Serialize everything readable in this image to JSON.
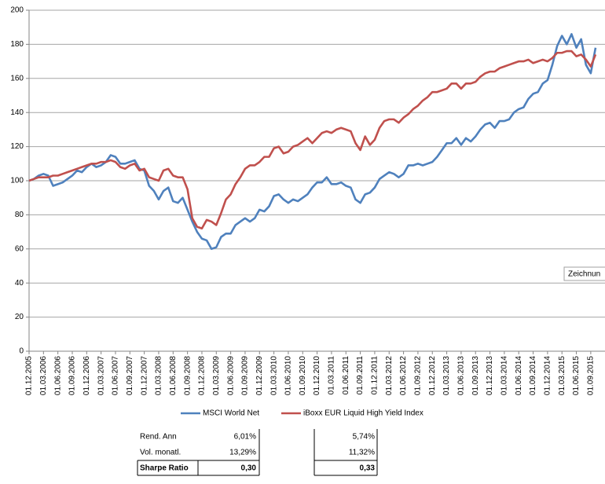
{
  "chart_data": {
    "type": "line",
    "categories": [
      "01.12.2005",
      null,
      null,
      "01.03.2006",
      null,
      null,
      "01.06.2006",
      null,
      null,
      "01.09.2006",
      null,
      null,
      "01.12.2006",
      null,
      null,
      "01.03.2007",
      null,
      null,
      "01.06.2007",
      null,
      null,
      "01.09.2007",
      null,
      null,
      "01.12.2007",
      null,
      null,
      "01.03.2008",
      null,
      null,
      "01.06.2008",
      null,
      null,
      "01.09.2008",
      null,
      null,
      "01.12.2008",
      null,
      null,
      "01.03.2009",
      null,
      null,
      "01.06.2009",
      null,
      null,
      "01.09.2009",
      null,
      null,
      "01.12.2009",
      null,
      null,
      "01.03.2010",
      null,
      null,
      "01.06.2010",
      null,
      null,
      "01.09.2010",
      null,
      null,
      "01.12.2010",
      null,
      null,
      "01.03.2011",
      null,
      null,
      "01.06.2011",
      null,
      null,
      "01.09.2011",
      null,
      null,
      "01.12.2011",
      null,
      null,
      "01.03.2012",
      null,
      null,
      "01.06.2012",
      null,
      null,
      "01.09.2012",
      null,
      null,
      "01.12.2012",
      null,
      null,
      "01.03.2013",
      null,
      null,
      "01.06.2013",
      null,
      null,
      "01.09.2013",
      null,
      null,
      "01.12.2013",
      null,
      null,
      "01.03.2014",
      null,
      null,
      "01.06.2014",
      null,
      null,
      "01.09.2014",
      null,
      null,
      "01.12.2014",
      null,
      null,
      "01.03.2015",
      null,
      null,
      "01.06.2015",
      null,
      null,
      "01.09.2015",
      null
    ],
    "series": [
      {
        "name": "MSCI World Net",
        "color": "#4f81bd",
        "values": [
          100,
          101,
          103,
          104,
          103,
          97,
          98,
          99,
          101,
          103,
          106,
          105,
          108,
          110,
          108,
          109,
          111,
          115,
          114,
          110,
          110,
          111,
          112,
          107,
          106,
          97,
          94,
          89,
          94,
          96,
          88,
          87,
          90,
          83,
          76,
          70,
          66,
          65,
          60,
          61,
          67,
          69,
          69,
          74,
          76,
          78,
          76,
          78,
          83,
          82,
          85,
          91,
          92,
          89,
          87,
          89,
          88,
          90,
          92,
          96,
          99,
          99,
          102,
          98,
          98,
          99,
          97,
          96,
          89,
          87,
          92,
          93,
          96,
          101,
          103,
          105,
          104,
          102,
          104,
          109,
          109,
          110,
          109,
          110,
          111,
          114,
          118,
          122,
          122,
          125,
          121,
          125,
          123,
          126,
          130,
          133,
          134,
          131,
          135,
          135,
          136,
          140,
          142,
          143,
          148,
          151,
          152,
          157,
          159,
          168,
          179,
          185,
          180,
          186,
          178,
          183,
          168,
          163,
          178
        ]
      },
      {
        "name": "iBoxx EUR Liquid High Yield Index",
        "color": "#c0504d",
        "values": [
          100,
          101,
          102,
          102,
          102,
          103,
          103,
          104,
          105,
          106,
          107,
          108,
          109,
          110,
          110,
          111,
          111,
          112,
          111,
          108,
          107,
          109,
          110,
          106,
          107,
          102,
          101,
          100,
          106,
          107,
          103,
          102,
          102,
          95,
          78,
          73,
          72,
          77,
          76,
          74,
          81,
          89,
          92,
          98,
          102,
          107,
          109,
          109,
          111,
          114,
          114,
          119,
          120,
          116,
          117,
          120,
          121,
          123,
          125,
          122,
          125,
          128,
          129,
          128,
          130,
          131,
          130,
          129,
          122,
          118,
          126,
          121,
          124,
          131,
          135,
          136,
          136,
          134,
          137,
          139,
          142,
          144,
          147,
          149,
          152,
          152,
          153,
          154,
          157,
          157,
          154,
          157,
          157,
          158,
          161,
          163,
          164,
          164,
          166,
          167,
          168,
          169,
          170,
          170,
          171,
          169,
          170,
          171,
          170,
          172,
          175,
          175,
          176,
          176,
          173,
          174,
          171,
          167,
          174
        ]
      }
    ],
    "ylim": [
      0,
      200
    ],
    "yticks": [
      0,
      20,
      40,
      60,
      80,
      100,
      120,
      140,
      160,
      180,
      200
    ],
    "grid": true,
    "legend": "bottom",
    "annotation": "Zeichnun"
  },
  "table": {
    "rows": [
      [
        "Rend. Ann",
        "6,01%",
        "5,74%"
      ],
      [
        "Vol. monatl.",
        "13,29%",
        "11,32%"
      ],
      [
        "Sharpe Ratio",
        "0,30",
        "0,33"
      ]
    ]
  }
}
